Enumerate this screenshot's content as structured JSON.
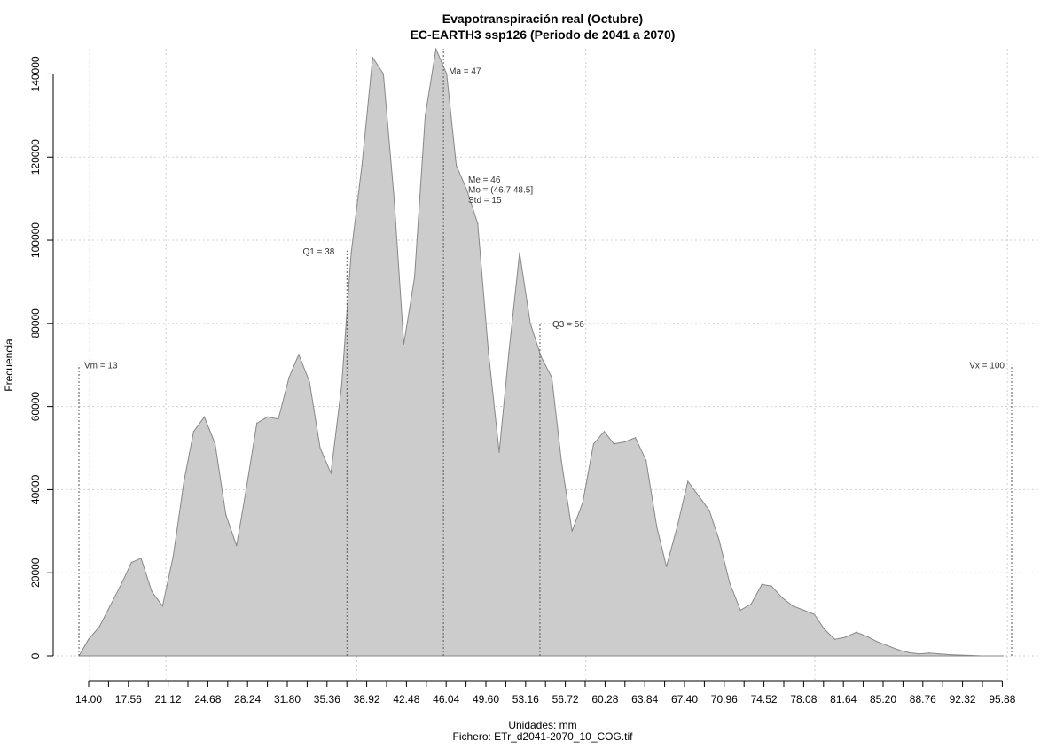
{
  "chart_data": {
    "type": "area",
    "title": "Evapotranspiración real (Octubre)",
    "subtitle": "EC-EARTH3 ssp126 (Periodo de 2041 a 2070)",
    "xlabel": "Unidades: mm",
    "ylabel": "Frecuencia",
    "footer": "Fichero: ETr_d2041-2070_10_COG.tif",
    "xlim": [
      13,
      100
    ],
    "ylim": [
      0,
      145000
    ],
    "x_ticks": [
      "14.00",
      "17.56",
      "21.12",
      "24.68",
      "28.24",
      "31.80",
      "35.36",
      "38.92",
      "42.48",
      "46.04",
      "49.60",
      "53.16",
      "56.72",
      "60.28",
      "63.84",
      "67.40",
      "70.96",
      "74.52",
      "78.08",
      "81.64",
      "85.20",
      "88.76",
      "92.32",
      "95.88"
    ],
    "y_ticks": [
      "0",
      "20000",
      "40000",
      "60000",
      "80000",
      "100000",
      "120000",
      "140000"
    ],
    "grid": true,
    "fill_color": "#cccccc",
    "line_color": "#888888",
    "x": [
      13.0,
      13.9,
      14.9,
      15.9,
      16.9,
      17.9,
      18.8,
      19.8,
      20.8,
      21.8,
      22.8,
      23.7,
      24.7,
      25.7,
      26.7,
      27.7,
      28.6,
      29.6,
      30.6,
      31.6,
      32.6,
      33.5,
      34.5,
      35.5,
      36.5,
      37.5,
      38.4,
      39.4,
      40.4,
      41.4,
      42.4,
      43.3,
      44.3,
      45.3,
      46.3,
      47.3,
      48.2,
      49.2,
      50.2,
      51.2,
      52.2,
      53.1,
      54.1,
      55.1,
      56.1,
      57.1,
      58.0,
      59.0,
      60.0,
      61.0,
      62.0,
      62.9,
      63.9,
      64.9,
      65.9,
      66.9,
      67.8,
      68.8,
      69.8,
      70.8,
      71.8,
      72.7,
      73.7,
      74.7,
      75.7,
      76.7,
      77.6,
      78.6,
      79.6,
      80.6,
      81.6,
      82.5,
      83.5,
      84.5,
      85.5,
      86.5,
      87.4,
      88.4,
      89.4,
      90.4,
      91.4,
      92.3,
      93.3,
      94.3,
      95.3,
      96.3,
      97.2,
      98.2,
      99.2
    ],
    "values": [
      0,
      4000,
      7000,
      12000,
      17000,
      22500,
      23500,
      15500,
      12000,
      24000,
      42000,
      54000,
      57500,
      51000,
      34000,
      26500,
      40000,
      56000,
      57500,
      57000,
      67000,
      72500,
      66000,
      50000,
      44000,
      65000,
      97000,
      118000,
      144000,
      140000,
      110000,
      75000,
      91000,
      130000,
      146000,
      140000,
      118000,
      112000,
      104000,
      73000,
      49000,
      73000,
      97000,
      80000,
      72000,
      67000,
      47000,
      30000,
      37000,
      51000,
      54000,
      51000,
      51500,
      52500,
      47000,
      31000,
      21500,
      31000,
      42000,
      38500,
      35000,
      28000,
      17500,
      11000,
      12500,
      17200,
      16800,
      14000,
      12000,
      11000,
      10000,
      6500,
      4000,
      4500,
      5700,
      4700,
      3500,
      2500,
      1500,
      800,
      500,
      700,
      500,
      300,
      200,
      100,
      0,
      0,
      0
    ],
    "stat_lines": [
      {
        "value": 13,
        "height": 70000,
        "label": "Vm = 13"
      },
      {
        "value": 38,
        "height": 97500,
        "label": "Q1 = 38"
      },
      {
        "value": 47,
        "height": 146000,
        "label": "Ma = 47"
      },
      {
        "value": 56,
        "height": 80000,
        "label": "Q3 = 56"
      },
      {
        "value": 100,
        "height": 70000,
        "label": "Vx = 100"
      }
    ],
    "stats_box": [
      "Me = 46",
      "Mo = (46.7,48.5]",
      "Std = 15"
    ]
  }
}
